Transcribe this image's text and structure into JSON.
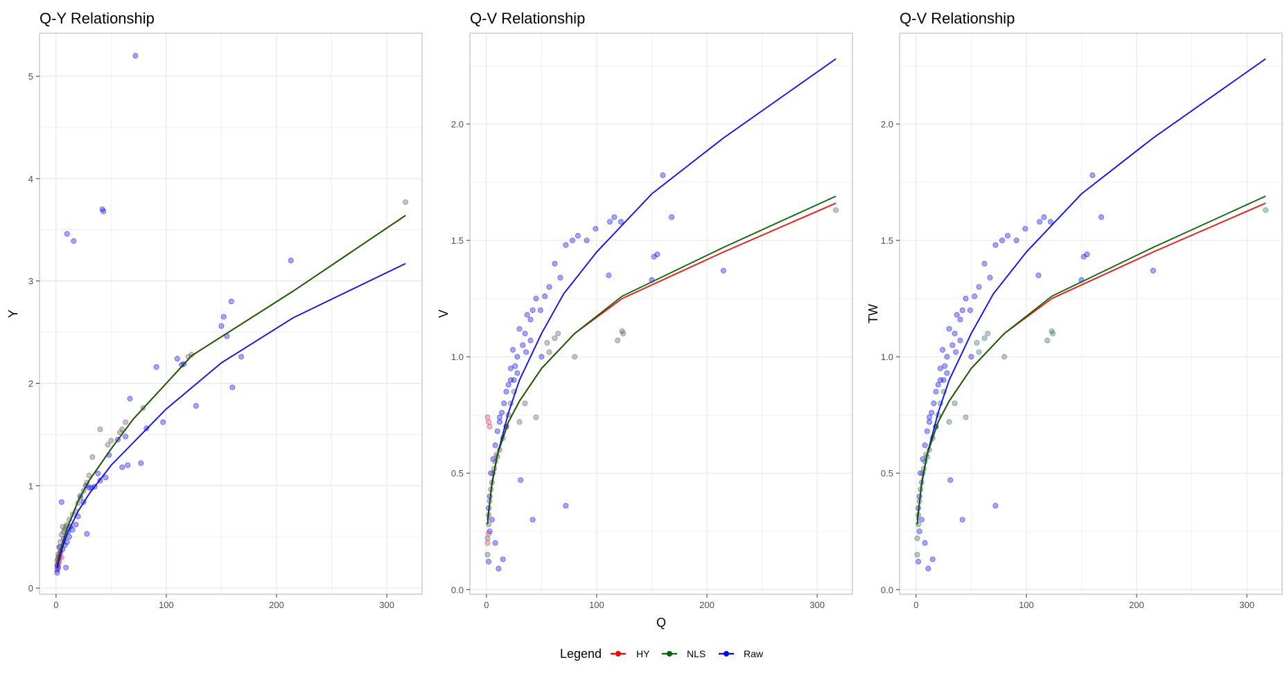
{
  "colors": {
    "HY": "#ff0000",
    "NLS": "#006400",
    "Raw": "#0000ff",
    "grid": "#e5e5e5",
    "frame": "#b3b3b3"
  },
  "legend": {
    "title": "Legend",
    "placement": "bottom",
    "items": [
      {
        "label": "HY",
        "color": "#ff0000"
      },
      {
        "label": "NLS",
        "color": "#006400"
      },
      {
        "label": "Raw",
        "color": "#0000ff"
      }
    ]
  },
  "chart_data": [
    {
      "type": "scatter",
      "title": "Q-Y Relationship",
      "xlabel": "",
      "ylabel": "Y",
      "xlim": [
        -15,
        332
      ],
      "ylim": [
        -0.06,
        5.42
      ],
      "xticks": [
        0,
        100,
        200,
        300
      ],
      "yticks": [
        0,
        1,
        2,
        3,
        4,
        5
      ],
      "grid": true,
      "lines": [
        {
          "name": "Raw",
          "color": "#0000ff",
          "x": [
            1,
            5,
            10,
            20,
            30,
            50,
            70,
            100,
            150,
            215,
            317
          ],
          "y": [
            0.2,
            0.37,
            0.53,
            0.75,
            0.92,
            1.2,
            1.42,
            1.75,
            2.2,
            2.64,
            3.17
          ]
        },
        {
          "name": "HY",
          "color": "#ff0000",
          "x": [
            1,
            5,
            10,
            20,
            30,
            50,
            70,
            100,
            123,
            215,
            317
          ],
          "y": [
            0.23,
            0.41,
            0.58,
            0.85,
            1.05,
            1.36,
            1.65,
            2.0,
            2.27,
            2.9,
            3.64
          ]
        },
        {
          "name": "NLS",
          "color": "#006400",
          "x": [
            1,
            5,
            10,
            20,
            30,
            50,
            70,
            100,
            123,
            215,
            317
          ],
          "y": [
            0.23,
            0.41,
            0.58,
            0.85,
            1.05,
            1.36,
            1.65,
            2.0,
            2.27,
            2.9,
            3.64
          ]
        }
      ],
      "points": [
        {
          "name": "Raw",
          "color": "#0000ff",
          "x": [
            72,
            42,
            43,
            10,
            16,
            213,
            159,
            152,
            155,
            150,
            168,
            91,
            110,
            114,
            116,
            127,
            97,
            67,
            160,
            77,
            60,
            65,
            82,
            45,
            40,
            30,
            35,
            28,
            25,
            20,
            18,
            15,
            12,
            10,
            8,
            6,
            5,
            4,
            3,
            2,
            2,
            1,
            1,
            1,
            3,
            7,
            9,
            11,
            13,
            22,
            27,
            32,
            38,
            48,
            56,
            63
          ],
          "y": [
            5.2,
            3.7,
            3.68,
            3.46,
            3.39,
            3.2,
            2.8,
            2.65,
            2.46,
            2.56,
            2.26,
            2.16,
            2.24,
            2.18,
            2.19,
            1.78,
            1.62,
            1.85,
            1.96,
            1.22,
            1.18,
            1.2,
            1.56,
            1.08,
            1.05,
            0.98,
            0.99,
            0.53,
            0.84,
            0.7,
            0.62,
            0.57,
            0.5,
            0.45,
            0.42,
            0.38,
            0.84,
            0.35,
            0.3,
            0.25,
            0.2,
            0.18,
            0.15,
            0.22,
            0.4,
            0.48,
            0.2,
            0.55,
            0.6,
            0.9,
            1.0,
            0.98,
            1.12,
            1.3,
            1.45,
            1.48
          ]
        },
        {
          "name": "NLS",
          "color": "#555555",
          "x": [
            317,
            123,
            120,
            79,
            63,
            60,
            58,
            50,
            47,
            40,
            33,
            30,
            28,
            25,
            22,
            20,
            18,
            15,
            12,
            10,
            9,
            8,
            7,
            6,
            5,
            4,
            3,
            2,
            2,
            1,
            1
          ],
          "y": [
            3.77,
            2.28,
            2.26,
            1.76,
            1.62,
            1.55,
            1.52,
            1.44,
            1.4,
            1.55,
            1.28,
            1.1,
            1.03,
            0.95,
            0.88,
            0.83,
            0.75,
            0.72,
            0.67,
            0.62,
            0.6,
            0.57,
            0.55,
            0.6,
            0.52,
            0.45,
            0.4,
            0.33,
            0.3,
            0.27,
            0.22
          ]
        },
        {
          "name": "HY",
          "color": "#cc3366",
          "x": [
            2,
            3,
            4,
            5,
            3,
            2
          ],
          "y": [
            0.28,
            0.32,
            0.36,
            0.3,
            0.26,
            0.22
          ]
        }
      ]
    },
    {
      "type": "scatter",
      "title": "Q-V Relationship",
      "xlabel": "Q",
      "ylabel": "V",
      "xlim": [
        -15,
        332
      ],
      "ylim": [
        -0.02,
        2.39
      ],
      "xticks": [
        0,
        100,
        200,
        300
      ],
      "yticks": [
        0.0,
        0.5,
        1.0,
        1.5,
        2.0
      ],
      "yticklabels": [
        "0.0",
        "0.5",
        "1.0",
        "1.5",
        "2.0"
      ],
      "grid": true,
      "lines": [
        {
          "name": "Raw",
          "color": "#0000ff",
          "x": [
            1,
            5,
            10,
            20,
            30,
            50,
            70,
            100,
            150,
            215,
            317
          ],
          "y": [
            0.3,
            0.45,
            0.58,
            0.76,
            0.9,
            1.1,
            1.27,
            1.45,
            1.7,
            1.94,
            2.28
          ]
        },
        {
          "name": "HY",
          "color": "#ff0000",
          "x": [
            1,
            5,
            10,
            20,
            30,
            50,
            80,
            123,
            215,
            317
          ],
          "y": [
            0.28,
            0.46,
            0.58,
            0.72,
            0.81,
            0.95,
            1.1,
            1.25,
            1.45,
            1.66
          ]
        },
        {
          "name": "NLS",
          "color": "#006400",
          "x": [
            1,
            5,
            10,
            20,
            30,
            50,
            80,
            123,
            215,
            317
          ],
          "y": [
            0.28,
            0.46,
            0.58,
            0.72,
            0.81,
            0.95,
            1.1,
            1.26,
            1.47,
            1.69
          ]
        }
      ],
      "points": [
        {
          "name": "Raw",
          "color": "#0000ff",
          "x": [
            160,
            168,
            122,
            116,
            112,
            99,
            91,
            83,
            78,
            72,
            67,
            62,
            57,
            53,
            49,
            45,
            42,
            40,
            37,
            35,
            33,
            30,
            28,
            26,
            25,
            24,
            22,
            20,
            18,
            16,
            14,
            12,
            10,
            8,
            6,
            4,
            3,
            2,
            215,
            155,
            152,
            150,
            111,
            42,
            72,
            31,
            15,
            11,
            8,
            50,
            40,
            36,
            28,
            22,
            18,
            12,
            5,
            3,
            2
          ],
          "y": [
            1.78,
            1.6,
            1.58,
            1.6,
            1.58,
            1.55,
            1.5,
            1.52,
            1.5,
            1.48,
            1.34,
            1.4,
            1.3,
            1.26,
            1.2,
            1.25,
            1.2,
            1.16,
            1.18,
            1.1,
            1.05,
            1.12,
            1.0,
            0.96,
            0.9,
            1.03,
            0.95,
            0.88,
            0.85,
            0.8,
            0.76,
            0.72,
            0.68,
            0.62,
            0.56,
            0.5,
            0.4,
            0.35,
            1.37,
            1.44,
            1.43,
            1.33,
            1.35,
            0.3,
            0.36,
            0.47,
            0.13,
            0.09,
            0.2,
            1.0,
            1.07,
            1.02,
            0.93,
            0.9,
            0.7,
            0.74,
            0.3,
            0.25,
            0.12
          ]
        },
        {
          "name": "NLS",
          "color": "#555555",
          "x": [
            317,
            123,
            124,
            119,
            80,
            65,
            62,
            57,
            55,
            45,
            35,
            30,
            25,
            22,
            20,
            18,
            15,
            12,
            10,
            9,
            8,
            7,
            6,
            5,
            4,
            3,
            2,
            2,
            1,
            1
          ],
          "y": [
            1.63,
            1.11,
            1.1,
            1.07,
            1.0,
            1.1,
            1.08,
            1.02,
            1.06,
            0.74,
            0.8,
            0.72,
            0.85,
            0.8,
            0.75,
            0.7,
            0.65,
            0.6,
            0.57,
            0.58,
            0.55,
            0.52,
            0.5,
            0.46,
            0.43,
            0.38,
            0.32,
            0.28,
            0.22,
            0.15
          ]
        },
        {
          "name": "HY",
          "color": "#cc3366",
          "x": [
            1,
            2,
            3,
            1,
            2
          ],
          "y": [
            0.74,
            0.72,
            0.7,
            0.2,
            0.24
          ]
        }
      ]
    },
    {
      "type": "scatter",
      "title": "Q-V Relationship",
      "xlabel": "",
      "ylabel": "TW",
      "xlim": [
        -15,
        332
      ],
      "ylim": [
        -0.02,
        2.39
      ],
      "xticks": [
        0,
        100,
        200,
        300
      ],
      "yticks": [
        0.0,
        0.5,
        1.0,
        1.5,
        2.0
      ],
      "yticklabels": [
        "0.0",
        "0.5",
        "1.0",
        "1.5",
        "2.0"
      ],
      "grid": true,
      "lines": [
        {
          "name": "Raw",
          "color": "#0000ff",
          "x": [
            1,
            5,
            10,
            20,
            30,
            50,
            70,
            100,
            150,
            215,
            317
          ],
          "y": [
            0.3,
            0.45,
            0.58,
            0.76,
            0.9,
            1.1,
            1.27,
            1.45,
            1.7,
            1.94,
            2.28
          ]
        },
        {
          "name": "HY",
          "color": "#ff0000",
          "x": [
            1,
            5,
            10,
            20,
            30,
            50,
            80,
            123,
            215,
            317
          ],
          "y": [
            0.28,
            0.46,
            0.58,
            0.72,
            0.81,
            0.95,
            1.1,
            1.25,
            1.45,
            1.66
          ]
        },
        {
          "name": "NLS",
          "color": "#006400",
          "x": [
            1,
            5,
            10,
            20,
            30,
            50,
            80,
            123,
            215,
            317
          ],
          "y": [
            0.28,
            0.46,
            0.58,
            0.72,
            0.81,
            0.95,
            1.1,
            1.26,
            1.47,
            1.69
          ]
        }
      ],
      "points": [
        {
          "name": "Raw",
          "color": "#0000ff",
          "x": [
            160,
            168,
            122,
            116,
            112,
            99,
            91,
            83,
            78,
            72,
            67,
            62,
            57,
            53,
            49,
            45,
            42,
            40,
            37,
            35,
            33,
            30,
            28,
            26,
            25,
            24,
            22,
            20,
            18,
            16,
            14,
            12,
            10,
            8,
            6,
            4,
            3,
            2,
            215,
            155,
            152,
            150,
            111,
            42,
            72,
            31,
            15,
            11,
            8,
            50,
            40,
            36,
            28,
            22,
            18,
            12,
            5,
            3,
            2
          ],
          "y": [
            1.78,
            1.6,
            1.58,
            1.6,
            1.58,
            1.55,
            1.5,
            1.52,
            1.5,
            1.48,
            1.34,
            1.4,
            1.3,
            1.26,
            1.2,
            1.25,
            1.2,
            1.16,
            1.18,
            1.1,
            1.05,
            1.12,
            1.0,
            0.96,
            0.9,
            1.03,
            0.95,
            0.88,
            0.85,
            0.8,
            0.76,
            0.72,
            0.68,
            0.62,
            0.56,
            0.5,
            0.4,
            0.35,
            1.37,
            1.44,
            1.43,
            1.33,
            1.35,
            0.3,
            0.36,
            0.47,
            0.13,
            0.09,
            0.2,
            1.0,
            1.07,
            1.02,
            0.93,
            0.9,
            0.7,
            0.74,
            0.3,
            0.25,
            0.12
          ]
        },
        {
          "name": "NLS",
          "color": "#2f6b5f",
          "x": [
            317,
            123,
            124,
            119,
            80,
            65,
            62,
            57,
            55,
            45,
            35,
            30,
            25,
            22,
            20,
            18,
            15,
            12,
            10,
            9,
            8,
            7,
            6,
            5,
            4,
            3,
            2,
            2,
            1,
            1
          ],
          "y": [
            1.63,
            1.11,
            1.1,
            1.07,
            1.0,
            1.1,
            1.08,
            1.02,
            1.06,
            0.74,
            0.8,
            0.72,
            0.85,
            0.8,
            0.75,
            0.7,
            0.65,
            0.6,
            0.57,
            0.58,
            0.55,
            0.52,
            0.5,
            0.46,
            0.43,
            0.38,
            0.32,
            0.28,
            0.22,
            0.15
          ]
        }
      ]
    }
  ]
}
